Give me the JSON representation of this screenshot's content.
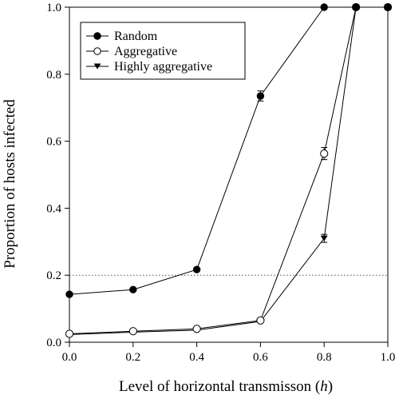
{
  "chart_data": {
    "type": "line",
    "xlabel": "Level of horizontal transmisson (",
    "xlabel_var": "h",
    "xlabel_end": ")",
    "ylabel": "Proportion of hosts infected",
    "xlim": [
      0,
      1
    ],
    "ylim": [
      0,
      1
    ],
    "xticks": [
      "0.0",
      "0.2",
      "0.4",
      "0.6",
      "0.8",
      "1.0"
    ],
    "yticks": [
      "0.0",
      "0.2",
      "0.4",
      "0.6",
      "0.8",
      "1.0"
    ],
    "reference_line": {
      "y": 0.2,
      "style": "dotted"
    },
    "legend_position": "top-left",
    "grid": false,
    "series": [
      {
        "name": "Random",
        "marker": "filled-circle",
        "x": [
          0.0,
          0.2,
          0.4,
          0.6,
          0.8,
          0.9,
          1.0
        ],
        "y": [
          0.143,
          0.157,
          0.217,
          0.735,
          1.0,
          1.0,
          1.0
        ],
        "err": [
          0,
          0,
          0,
          0.015,
          0,
          0,
          0
        ]
      },
      {
        "name": "Aggregative",
        "marker": "open-circle",
        "x": [
          0.0,
          0.2,
          0.4,
          0.6,
          0.8,
          0.9,
          1.0
        ],
        "y": [
          0.025,
          0.033,
          0.04,
          0.065,
          0.563,
          1.0,
          1.0
        ],
        "err": [
          0,
          0,
          0,
          0,
          0.018,
          0,
          0
        ]
      },
      {
        "name": "Highly aggregative",
        "marker": "filled-triangle-down",
        "x": [
          0.0,
          0.2,
          0.4,
          0.6,
          0.8,
          0.9,
          1.0
        ],
        "y": [
          0.023,
          0.03,
          0.036,
          0.062,
          0.31,
          1.0,
          1.0
        ],
        "err": [
          0,
          0,
          0,
          0,
          0.012,
          0,
          0
        ]
      }
    ]
  }
}
